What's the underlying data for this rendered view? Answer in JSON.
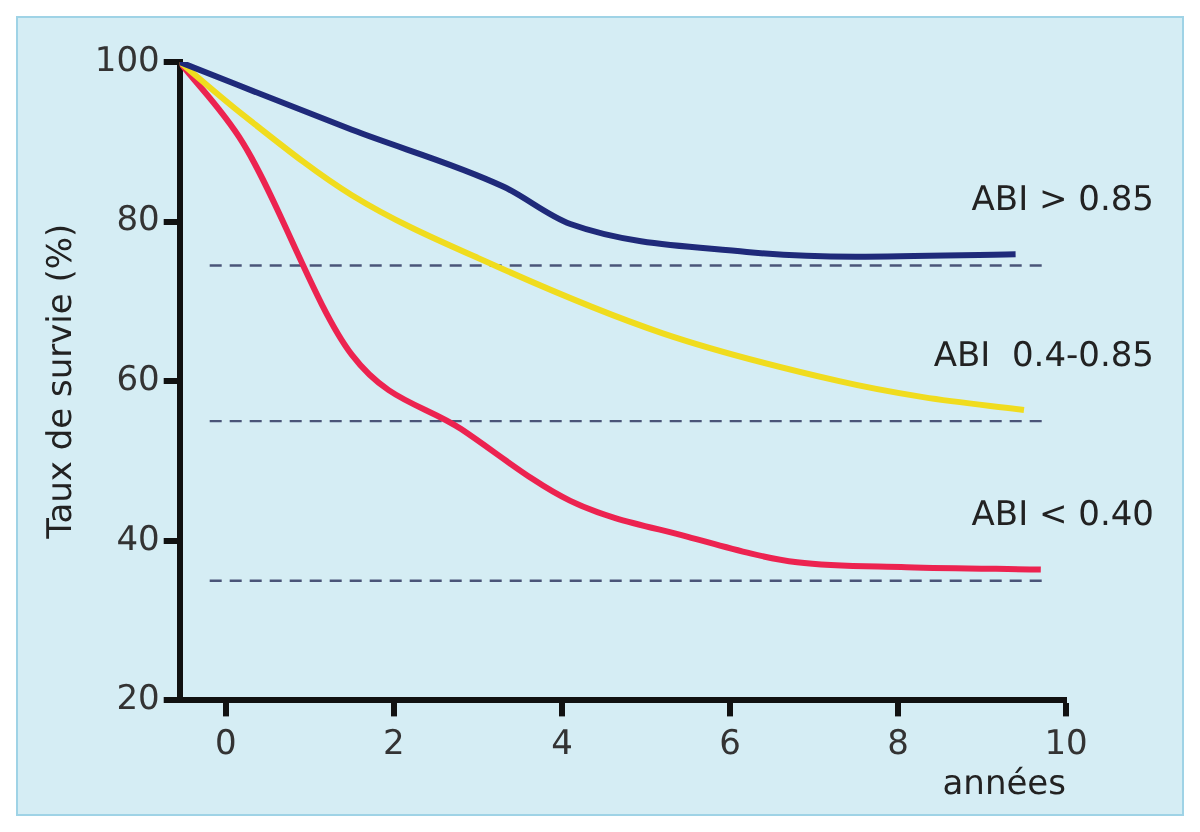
{
  "chart_data": {
    "type": "line",
    "xlabel": "années",
    "ylabel": "Taux de survie (%)",
    "xlim": [
      -0.55,
      10
    ],
    "xticks": [
      0,
      2,
      4,
      6,
      8,
      10
    ],
    "ylim": [
      20,
      100
    ],
    "yticks": [
      20,
      40,
      60,
      80,
      100
    ],
    "grid": false,
    "legend": false,
    "marker": "none",
    "line_style": "solid",
    "series": [
      {
        "name": "ABI > 0.85",
        "color": "#1f2a7a",
        "x": [
          -0.55,
          1.5,
          3.3,
          4.1,
          6.2,
          7.5,
          9.4
        ],
        "values": [
          100,
          91.5,
          84.4,
          79.7,
          76.2,
          75.6,
          75.9
        ]
      },
      {
        "name": "ABI  0.4-0.85",
        "color": "#f0dc1e",
        "x": [
          -0.55,
          0.2,
          1.5,
          3.2,
          5.2,
          7.3,
          8.3,
          9.5
        ],
        "values": [
          100,
          93.4,
          83.3,
          74.5,
          66,
          60,
          58,
          56.4
        ]
      },
      {
        "name": "ABI < 0.40",
        "color": "#ec2350",
        "x": [
          -0.55,
          0.2,
          1.5,
          2.8,
          4.1,
          5.5,
          6.8,
          8.1,
          9.7
        ],
        "values": [
          100,
          89.9,
          63.3,
          54,
          45,
          40.5,
          37.3,
          36.7,
          36.4
        ]
      }
    ],
    "ref_lines": [
      {
        "axis": "y",
        "value": 74.5,
        "color": "#4a5578",
        "line_style": "dashed"
      },
      {
        "axis": "y",
        "value": 55,
        "color": "#4a5578",
        "line_style": "dashed"
      },
      {
        "axis": "y",
        "value": 35,
        "color": "#4a5578",
        "line_style": "dashed"
      }
    ]
  }
}
